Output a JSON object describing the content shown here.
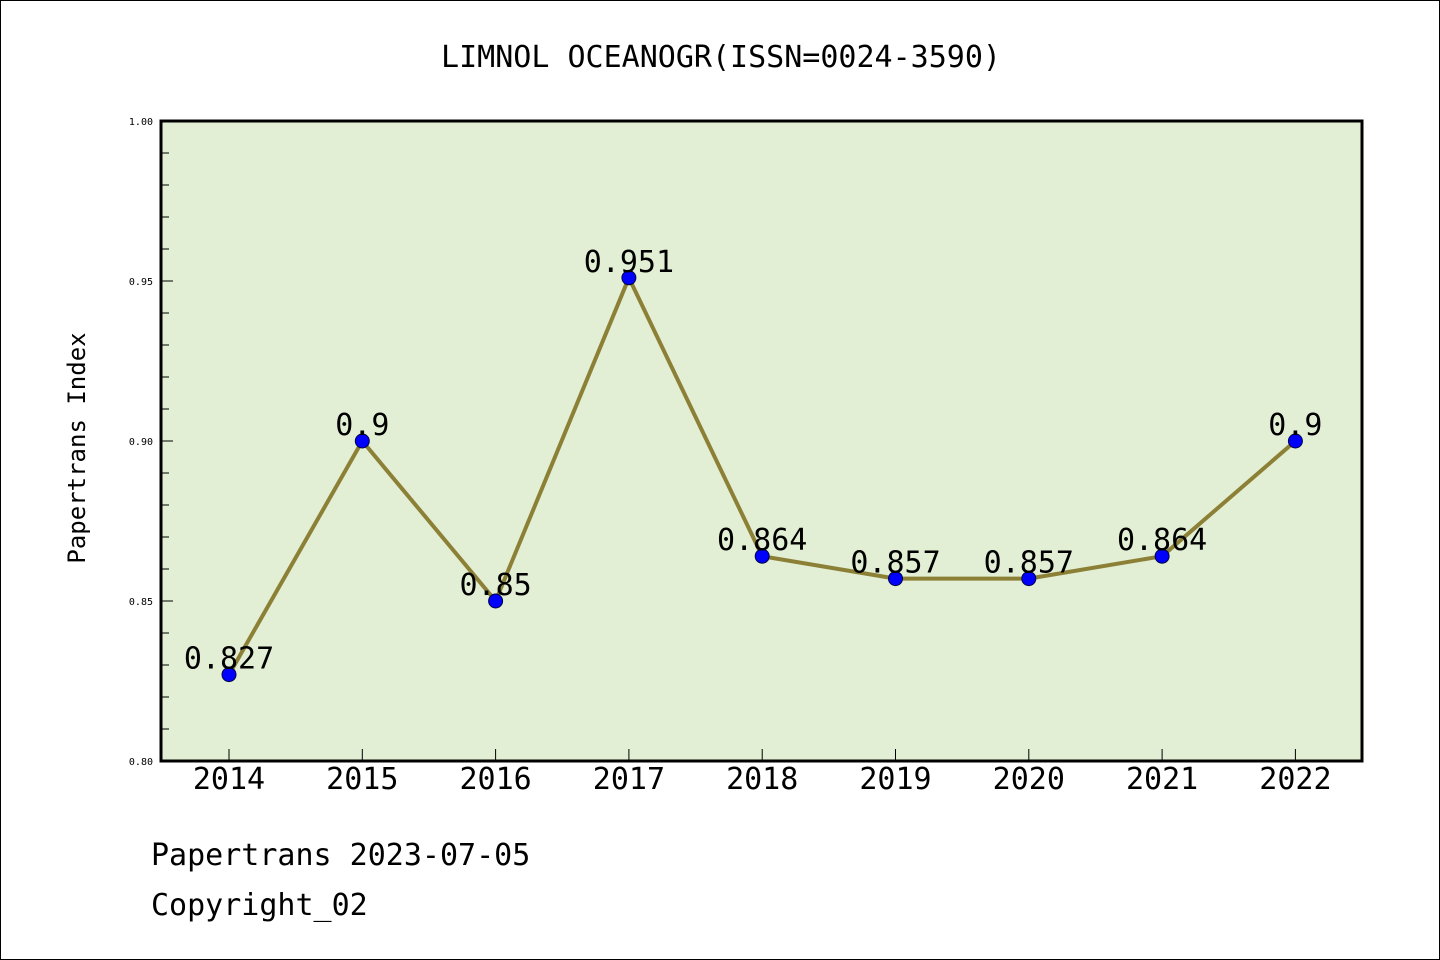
{
  "chart_data": {
    "type": "line",
    "title": "LIMNOL OCEANOGR(ISSN=0024-3590)",
    "ylabel": "Papertrans Index",
    "xlabel": "",
    "categories": [
      "2014",
      "2015",
      "2016",
      "2017",
      "2018",
      "2019",
      "2020",
      "2021",
      "2022"
    ],
    "series": [
      {
        "values": [
          0.827,
          0.9,
          0.85,
          0.951,
          0.864,
          0.857,
          0.857,
          0.864,
          0.9
        ]
      }
    ],
    "data_labels": [
      "0.827",
      "0.9",
      "0.85",
      "0.951",
      "0.864",
      "0.857",
      "0.857",
      "0.864",
      "0.9"
    ],
    "ylim": [
      0.8,
      1.0
    ],
    "yticks": [
      "0.80",
      "0.85",
      "0.90",
      "0.95",
      "1.00"
    ],
    "grid": false,
    "colors": {
      "plot_background": "#e2efd4",
      "line": "#8c8036",
      "marker": "#0000ff"
    }
  },
  "footer": {
    "line1": "Papertrans 2023-07-05",
    "line2": "Copyright_02"
  }
}
